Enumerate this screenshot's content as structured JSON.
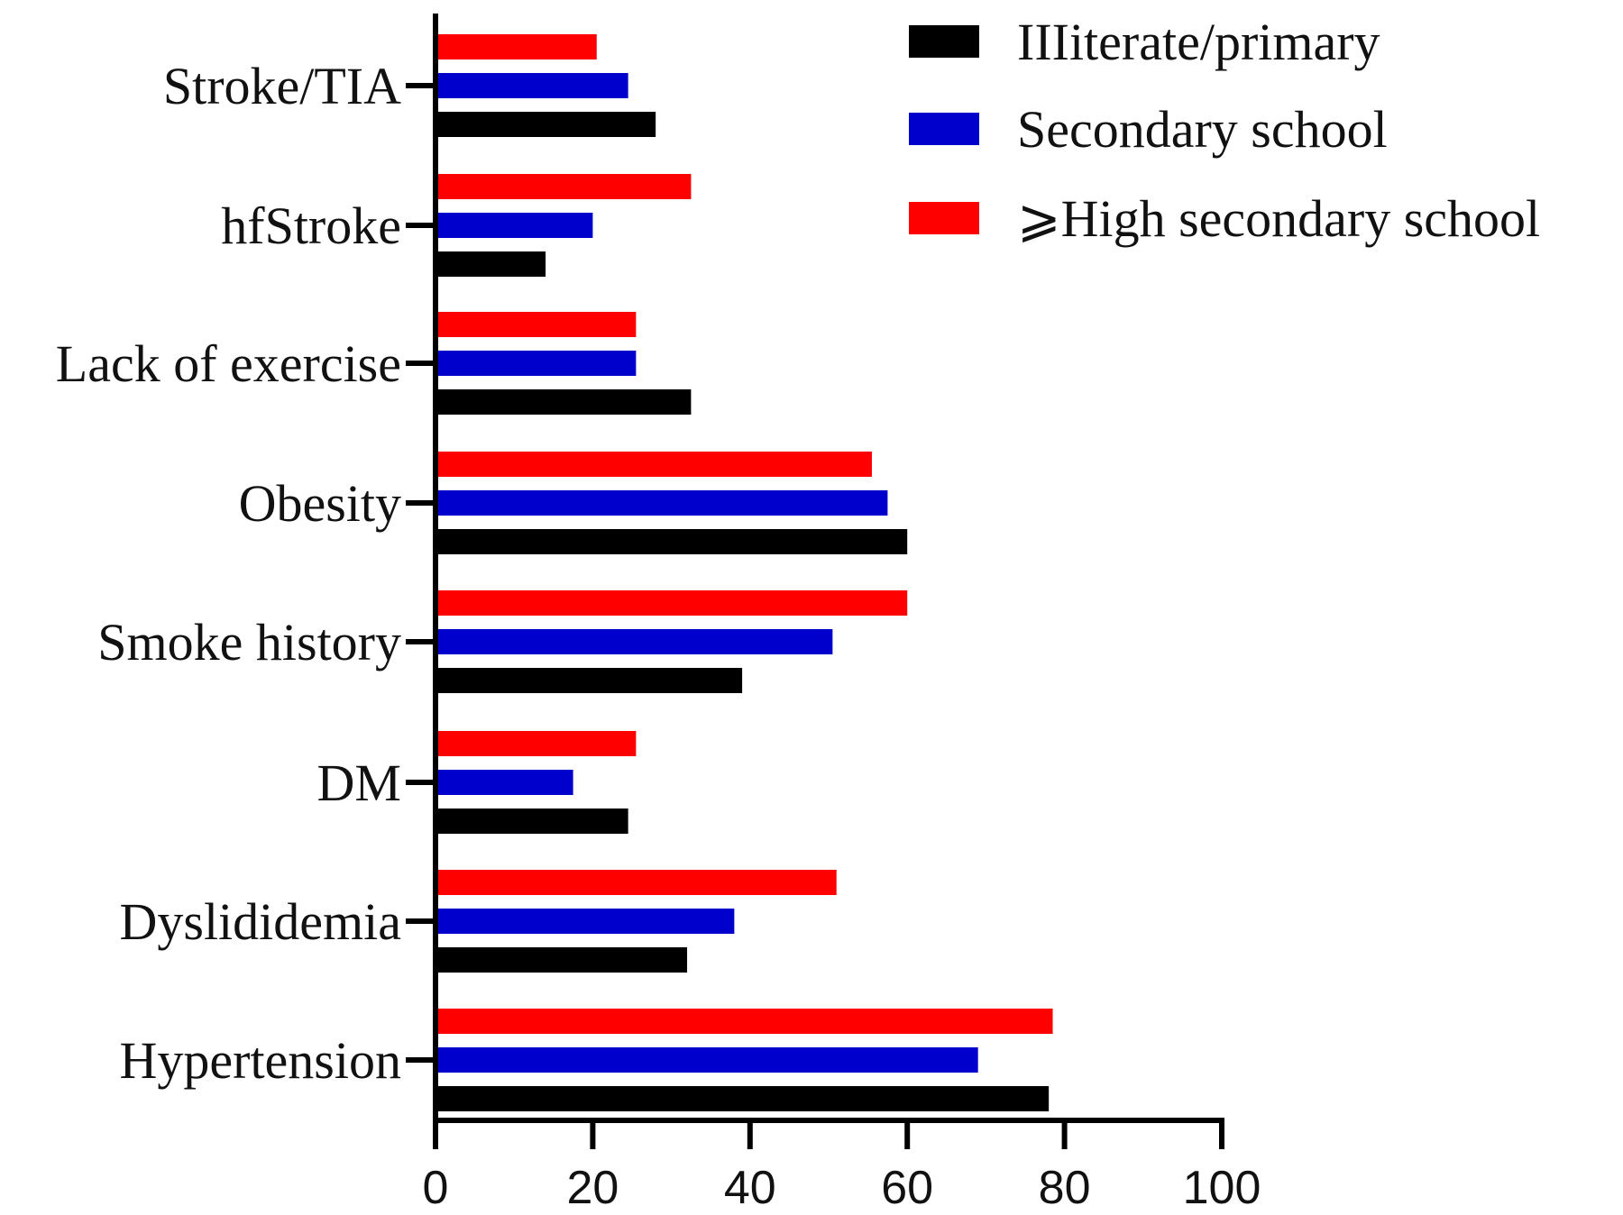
{
  "chart_data": {
    "type": "bar",
    "orientation": "horizontal",
    "categories": [
      "Stroke/TIA",
      "hfStroke",
      "Lack of exercise",
      "Obesity",
      "Smoke history",
      "DM",
      "Dyslididemia",
      "Hypertension"
    ],
    "series": [
      {
        "name": "IIIiterate/primary",
        "color": "#000000",
        "values": [
          28,
          14,
          32.5,
          60,
          39,
          24.5,
          32,
          78
        ]
      },
      {
        "name": "Secondary school",
        "color": "#0000cc",
        "values": [
          24.5,
          20,
          25.5,
          57.5,
          50.5,
          17.5,
          38,
          69
        ]
      },
      {
        "name": "⩾High secondary school",
        "color": "#ff0000",
        "values": [
          20.5,
          32.5,
          25.5,
          55.5,
          60,
          25.5,
          51,
          78.5
        ]
      }
    ],
    "xticks": [
      "0",
      "20",
      "40",
      "60",
      "80",
      "100"
    ],
    "xlim": [
      0,
      100
    ],
    "xlabel": "",
    "ylabel": "",
    "title": "",
    "legend_position": "top-right",
    "grid": false
  }
}
